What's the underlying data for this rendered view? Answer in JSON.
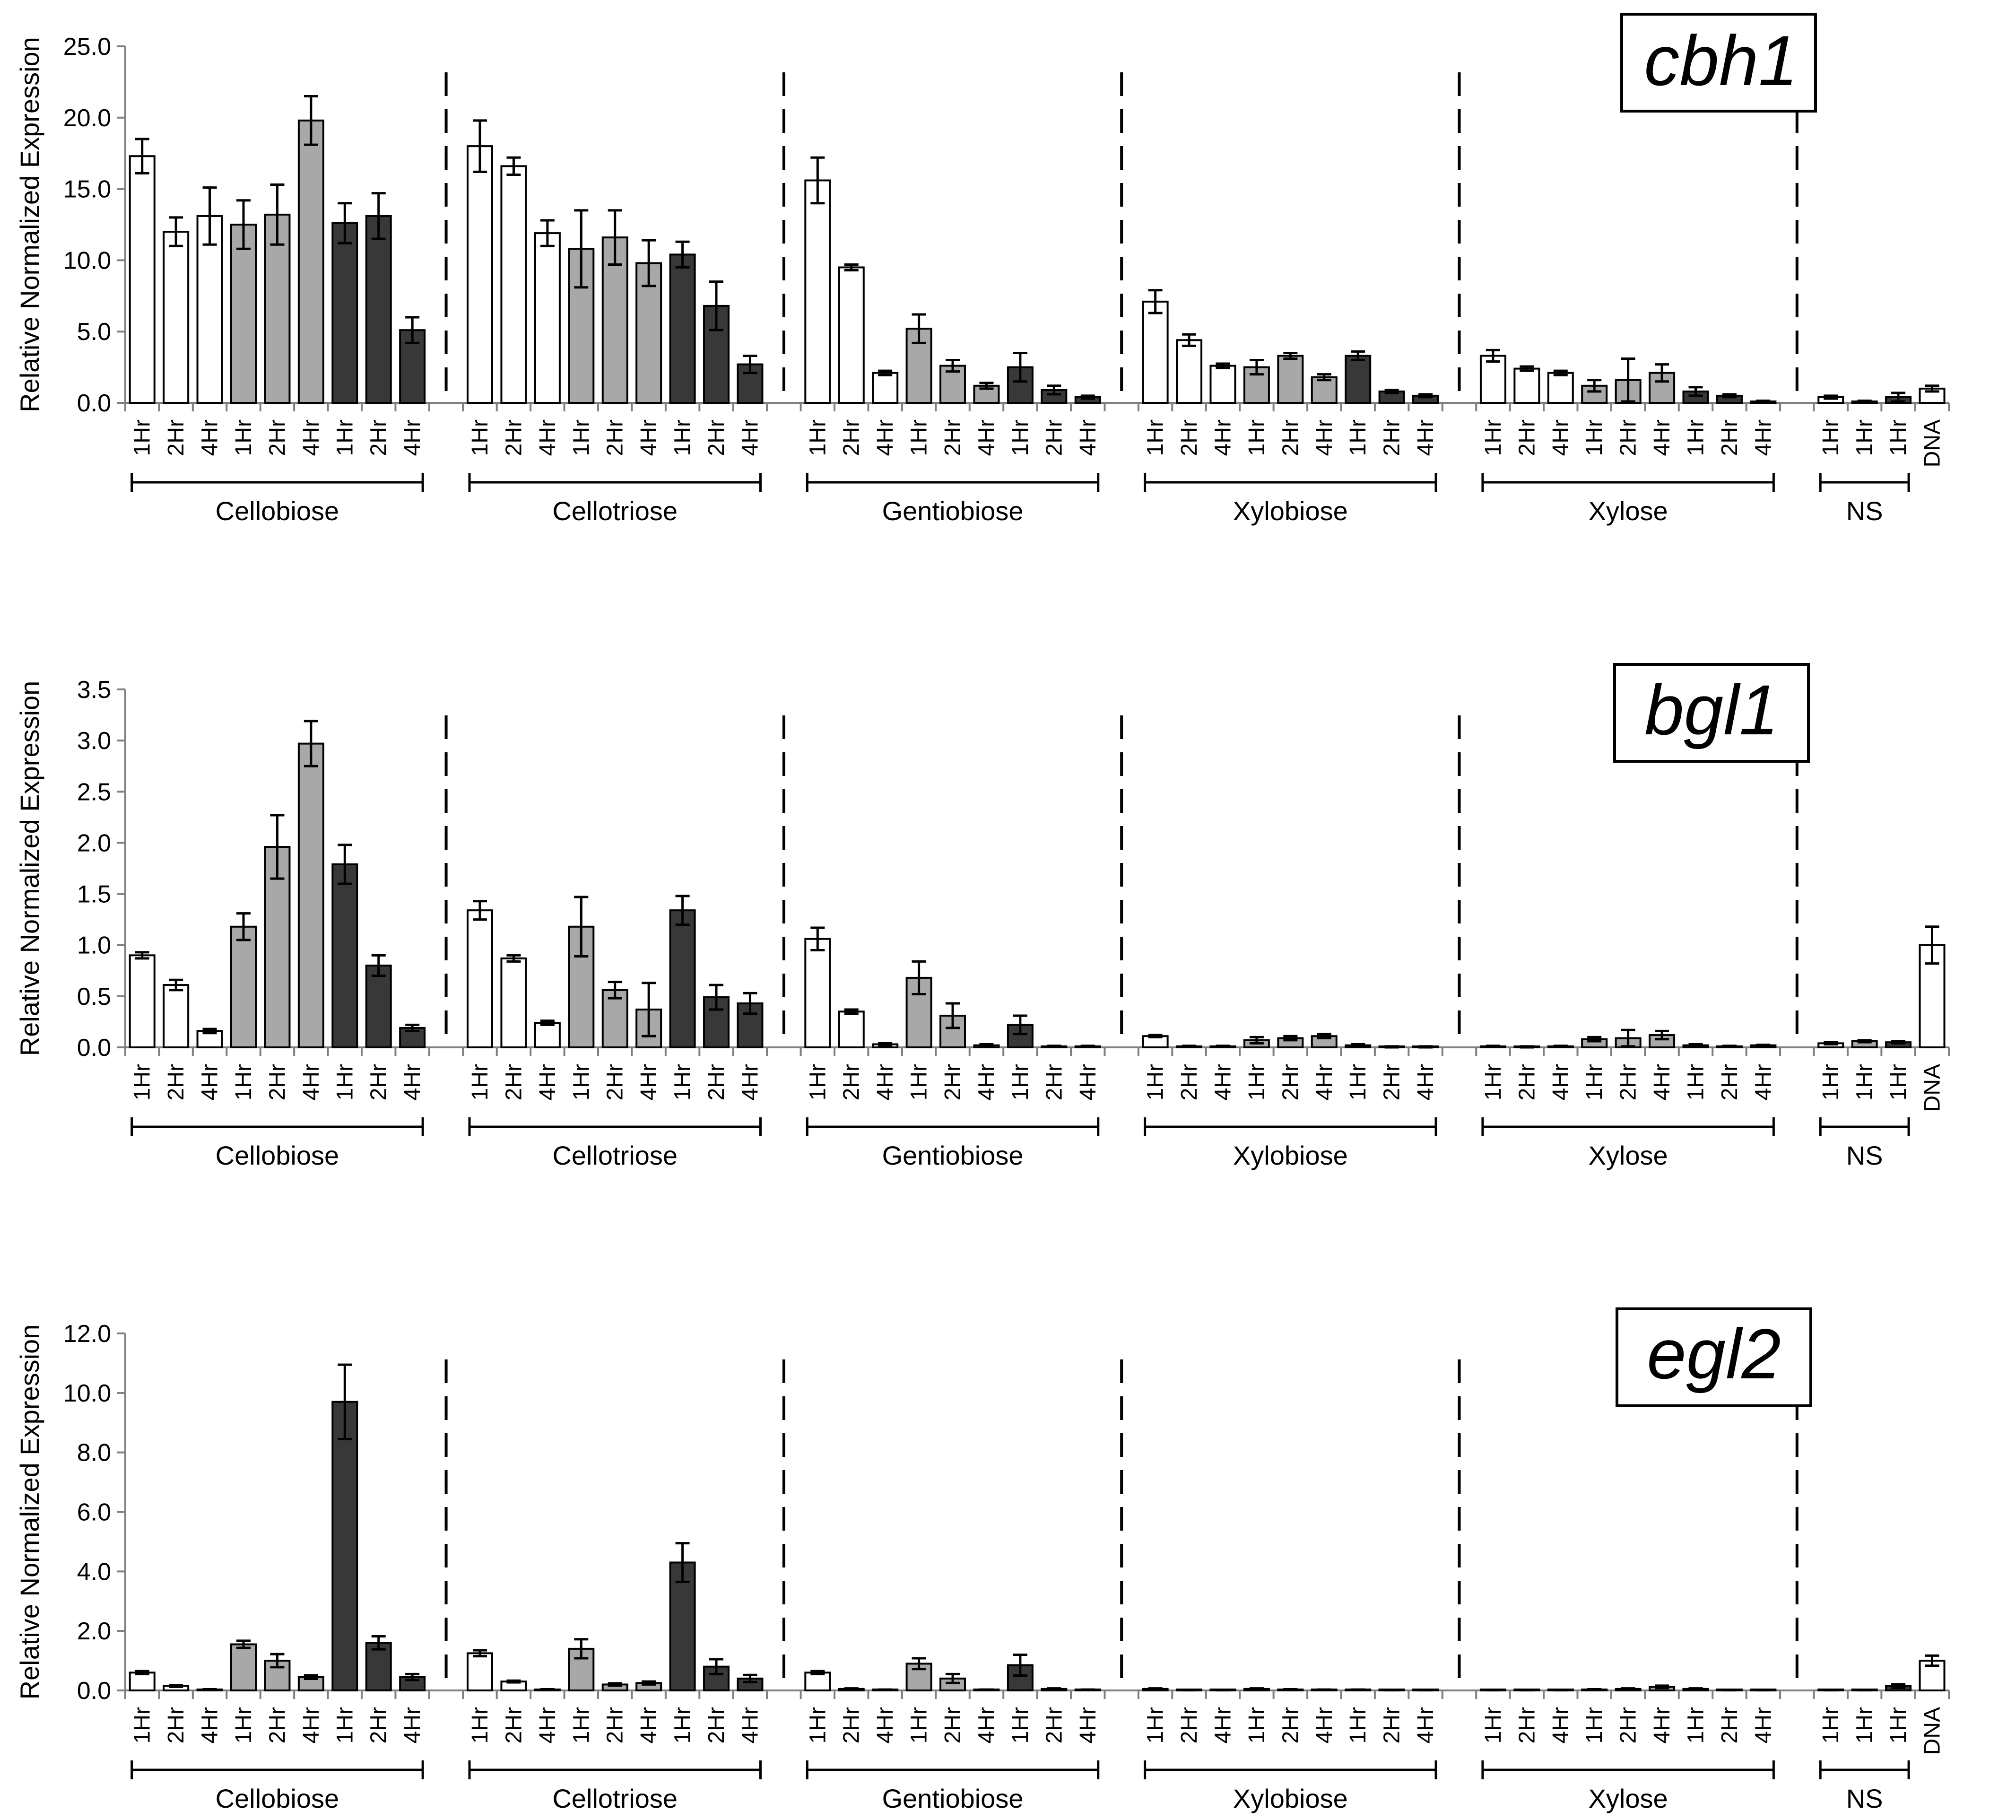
{
  "chart_data": [
    {
      "type": "bar",
      "title": "cbh1",
      "ylabel": "Relative Normalized Expression",
      "ylim": [
        0,
        25
      ],
      "yticks": [
        "0.0",
        "5.0",
        "10.0",
        "15.0",
        "20.0",
        "25.0"
      ],
      "groups": [
        "Cellobiose",
        "Cellotriose",
        "Gentiobiose",
        "Xylobiose",
        "Xylose",
        "NS"
      ],
      "categories": [
        "1Hr",
        "2Hr",
        "4Hr",
        "1Hr",
        "2Hr",
        "4Hr",
        "1Hr",
        "2Hr",
        "4Hr",
        "1Hr",
        "2Hr",
        "4Hr",
        "1Hr",
        "2Hr",
        "4Hr",
        "1Hr",
        "2Hr",
        "4Hr",
        "1Hr",
        "2Hr",
        "4Hr",
        "1Hr",
        "2Hr",
        "4Hr",
        "1Hr",
        "2Hr",
        "4Hr",
        "1Hr",
        "2Hr",
        "4Hr",
        "1Hr",
        "2Hr",
        "4Hr",
        "1Hr",
        "2Hr",
        "4Hr",
        "1Hr",
        "2Hr",
        "4Hr",
        "1Hr",
        "2Hr",
        "4Hr",
        "1Hr",
        "2Hr",
        "4Hr",
        "1Hr",
        "1Hr",
        "1Hr",
        "DNA"
      ],
      "values": [
        17.3,
        12.0,
        13.1,
        12.5,
        13.2,
        19.8,
        12.6,
        13.1,
        5.1,
        18.0,
        16.6,
        11.9,
        10.8,
        11.6,
        9.8,
        10.4,
        6.8,
        2.7,
        15.6,
        9.5,
        2.1,
        5.2,
        2.6,
        1.2,
        2.5,
        0.9,
        0.4,
        7.1,
        4.4,
        2.6,
        2.5,
        3.3,
        1.8,
        3.3,
        0.8,
        0.5,
        3.3,
        2.4,
        2.1,
        1.2,
        1.6,
        2.1,
        0.8,
        0.5,
        0.1,
        0.4,
        0.1,
        0.4,
        1.0
      ],
      "errors": [
        1.2,
        1.0,
        2.0,
        1.7,
        2.1,
        1.7,
        1.4,
        1.6,
        0.9,
        1.8,
        0.6,
        0.9,
        2.7,
        1.9,
        1.6,
        0.9,
        1.7,
        0.6,
        1.6,
        0.2,
        0.15,
        1.0,
        0.4,
        0.2,
        1.0,
        0.3,
        0.1,
        0.8,
        0.4,
        0.15,
        0.5,
        0.2,
        0.2,
        0.3,
        0.1,
        0.1,
        0.4,
        0.15,
        0.15,
        0.4,
        1.5,
        0.6,
        0.3,
        0.1,
        0.05,
        0.1,
        0.05,
        0.3,
        0.2
      ]
    },
    {
      "type": "bar",
      "title": "bgl1",
      "ylabel": "Relative Normalized Expression",
      "ylim": [
        0,
        3.5
      ],
      "yticks": [
        "0.0",
        "0.5",
        "1.0",
        "1.5",
        "2.0",
        "2.5",
        "3.0",
        "3.5"
      ],
      "groups": [
        "Cellobiose",
        "Cellotriose",
        "Gentiobiose",
        "Xylobiose",
        "Xylose",
        "NS"
      ],
      "categories": [
        "1Hr",
        "2Hr",
        "4Hr",
        "1Hr",
        "2Hr",
        "4Hr",
        "1Hr",
        "2Hr",
        "4Hr",
        "1Hr",
        "2Hr",
        "4Hr",
        "1Hr",
        "2Hr",
        "4Hr",
        "1Hr",
        "2Hr",
        "4Hr",
        "1Hr",
        "2Hr",
        "4Hr",
        "1Hr",
        "2Hr",
        "4Hr",
        "1Hr",
        "2Hr",
        "4Hr",
        "1Hr",
        "2Hr",
        "4Hr",
        "1Hr",
        "2Hr",
        "4Hr",
        "1Hr",
        "2Hr",
        "4Hr",
        "1Hr",
        "2Hr",
        "4Hr",
        "1Hr",
        "2Hr",
        "4Hr",
        "1Hr",
        "2Hr",
        "4Hr",
        "1Hr",
        "1Hr",
        "1Hr",
        "DNA"
      ],
      "values": [
        0.9,
        0.61,
        0.16,
        1.18,
        1.96,
        2.97,
        1.79,
        0.8,
        0.19,
        1.34,
        0.87,
        0.24,
        1.18,
        0.56,
        0.37,
        1.34,
        0.49,
        0.43,
        1.06,
        0.35,
        0.03,
        0.68,
        0.31,
        0.02,
        0.22,
        0.01,
        0.01,
        0.11,
        0.01,
        0.01,
        0.07,
        0.09,
        0.11,
        0.02,
        0.005,
        0.005,
        0.01,
        0.005,
        0.01,
        0.08,
        0.09,
        0.12,
        0.02,
        0.01,
        0.02,
        0.04,
        0.06,
        0.05,
        1.0
      ],
      "errors": [
        0.03,
        0.05,
        0.02,
        0.13,
        0.31,
        0.22,
        0.19,
        0.1,
        0.03,
        0.09,
        0.03,
        0.02,
        0.29,
        0.08,
        0.26,
        0.14,
        0.12,
        0.1,
        0.11,
        0.02,
        0.01,
        0.16,
        0.12,
        0.01,
        0.09,
        0.005,
        0.005,
        0.01,
        0.005,
        0.005,
        0.03,
        0.02,
        0.02,
        0.01,
        0.005,
        0.005,
        0.005,
        0.005,
        0.005,
        0.02,
        0.08,
        0.04,
        0.01,
        0.005,
        0.005,
        0.01,
        0.01,
        0.01,
        0.18
      ]
    },
    {
      "type": "bar",
      "title": "egl2",
      "ylabel": "Relative Normalized Expression",
      "ylim": [
        0,
        12
      ],
      "yticks": [
        "0.0",
        "2.0",
        "4.0",
        "6.0",
        "8.0",
        "10.0",
        "12.0"
      ],
      "groups": [
        "Cellobiose",
        "Cellotriose",
        "Gentiobiose",
        "Xylobiose",
        "Xylose",
        "NS"
      ],
      "categories": [
        "1Hr",
        "2Hr",
        "4Hr",
        "1Hr",
        "2Hr",
        "4Hr",
        "1Hr",
        "2Hr",
        "4Hr",
        "1Hr",
        "2Hr",
        "4Hr",
        "1Hr",
        "2Hr",
        "4Hr",
        "1Hr",
        "2Hr",
        "4Hr",
        "1Hr",
        "2Hr",
        "4Hr",
        "1Hr",
        "2Hr",
        "4Hr",
        "1Hr",
        "2Hr",
        "4Hr",
        "1Hr",
        "2Hr",
        "4Hr",
        "1Hr",
        "2Hr",
        "4Hr",
        "1Hr",
        "2Hr",
        "4Hr",
        "1Hr",
        "2Hr",
        "4Hr",
        "1Hr",
        "2Hr",
        "4Hr",
        "1Hr",
        "2Hr",
        "4Hr",
        "1Hr",
        "1Hr",
        "1Hr",
        "DNA"
      ],
      "values": [
        0.6,
        0.15,
        0.03,
        1.55,
        1.0,
        0.45,
        9.7,
        1.6,
        0.45,
        1.25,
        0.3,
        0.03,
        1.4,
        0.2,
        0.25,
        4.3,
        0.8,
        0.4,
        0.6,
        0.05,
        0.02,
        0.9,
        0.4,
        0.02,
        0.85,
        0.05,
        0.02,
        0.05,
        0.01,
        0.01,
        0.05,
        0.03,
        0.02,
        0.02,
        0.01,
        0.01,
        0.01,
        0.01,
        0.01,
        0.03,
        0.05,
        0.12,
        0.05,
        0.01,
        0.01,
        0.01,
        0.01,
        0.15,
        1.0
      ],
      "errors": [
        0.05,
        0.03,
        0.01,
        0.12,
        0.22,
        0.06,
        1.25,
        0.22,
        0.1,
        0.1,
        0.03,
        0.01,
        0.32,
        0.04,
        0.05,
        0.65,
        0.25,
        0.12,
        0.05,
        0.02,
        0.01,
        0.18,
        0.15,
        0.01,
        0.35,
        0.02,
        0.01,
        0.02,
        0.005,
        0.005,
        0.02,
        0.01,
        0.01,
        0.01,
        0.005,
        0.005,
        0.005,
        0.005,
        0.005,
        0.01,
        0.02,
        0.04,
        0.02,
        0.005,
        0.005,
        0.005,
        0.005,
        0.06,
        0.17
      ]
    }
  ]
}
